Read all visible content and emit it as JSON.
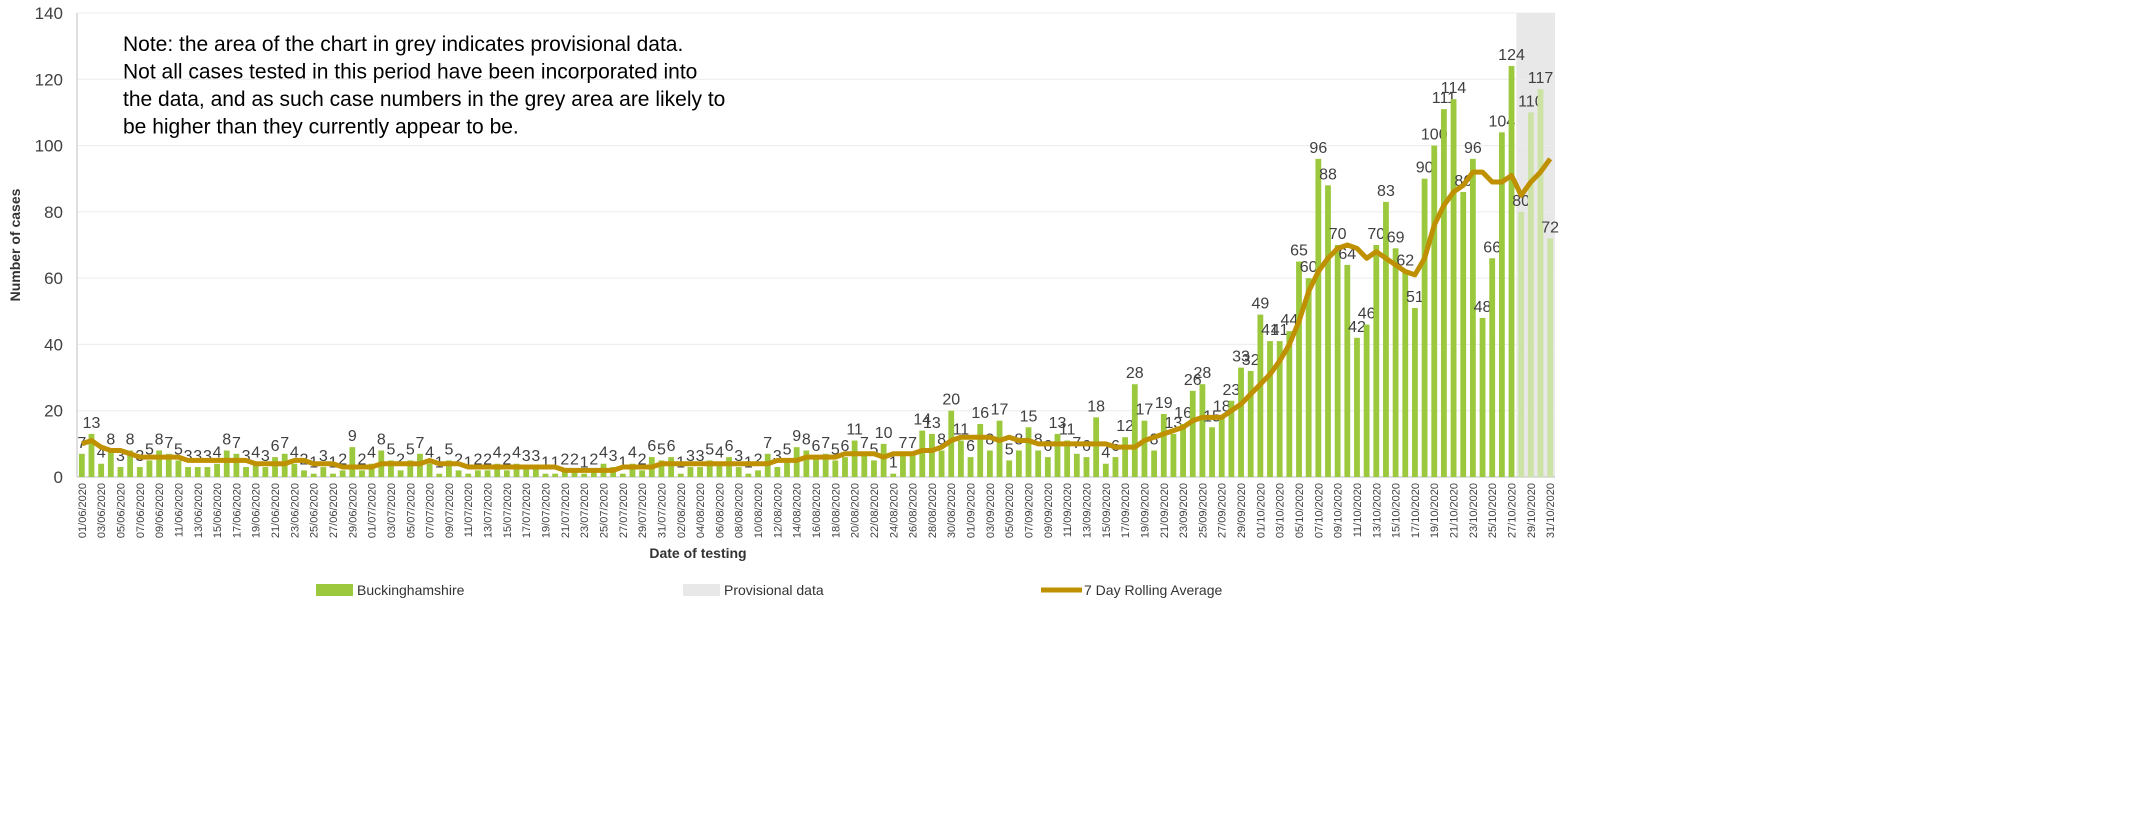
{
  "chart_data": {
    "type": "bar",
    "annotations": [
      "Note: the area of the chart in grey indicates provisional data.",
      "Not all cases tested in this period have been incorporated into",
      "the data, and as such case numbers in the grey area are likely to",
      "be higher than they currently appear to be."
    ],
    "x_label": "Date of testing",
    "y_label": "Number of cases",
    "categories": [
      "01/06/2020",
      null,
      "03/06/2020",
      null,
      "05/06/2020",
      null,
      "07/06/2020",
      null,
      "09/06/2020",
      null,
      "11/06/2020",
      null,
      "13/06/2020",
      null,
      "15/06/2020",
      null,
      "17/06/2020",
      null,
      "19/06/2020",
      null,
      "21/06/2020",
      null,
      "23/06/2020",
      null,
      "25/06/2020",
      null,
      "27/06/2020",
      null,
      "29/06/2020",
      null,
      "01/07/2020",
      null,
      "03/07/2020",
      null,
      "05/07/2020",
      null,
      "07/07/2020",
      null,
      "09/07/2020",
      null,
      "11/07/2020",
      null,
      "13/07/2020",
      null,
      "15/07/2020",
      null,
      "17/07/2020",
      null,
      "19/07/2020",
      null,
      "21/07/2020",
      null,
      "23/07/2020",
      null,
      "25/07/2020",
      null,
      "27/07/2020",
      null,
      "29/07/2020",
      null,
      "31/07/2020",
      null,
      "02/08/2020",
      null,
      "04/08/2020",
      null,
      "06/08/2020",
      null,
      "08/08/2020",
      null,
      "10/08/2020",
      null,
      "12/08/2020",
      null,
      "14/08/2020",
      null,
      "16/08/2020",
      null,
      "18/08/2020",
      null,
      "20/08/2020",
      null,
      "22/08/2020",
      null,
      "24/08/2020",
      null,
      "26/08/2020",
      null,
      "28/08/2020",
      null,
      "30/08/2020",
      null,
      "01/09/2020",
      null,
      "03/09/2020",
      null,
      "05/09/2020",
      null,
      "07/09/2020",
      null,
      "09/09/2020",
      null,
      "11/09/2020",
      null,
      "13/09/2020",
      null,
      "15/09/2020",
      null,
      "17/09/2020",
      null,
      "19/09/2020",
      null,
      "21/09/2020",
      null,
      "23/09/2020",
      null,
      "25/09/2020",
      null,
      "27/09/2020",
      null,
      "29/09/2020",
      null,
      "01/10/2020",
      null,
      "03/10/2020",
      null,
      "05/10/2020",
      null,
      "07/10/2020",
      null,
      "09/10/2020",
      null,
      "11/10/2020",
      null,
      "13/10/2020",
      null,
      "15/10/2020",
      null,
      "17/10/2020",
      null,
      "19/10/2020",
      null,
      "21/10/2020",
      null,
      "23/10/2020",
      null,
      "25/10/2020",
      null,
      "27/10/2020",
      null,
      "29/10/2020",
      null,
      "31/10/2020"
    ],
    "series": [
      {
        "name": "Buckinghamshire",
        "color": "#9bc83c",
        "values": [
          7,
          13,
          4,
          8,
          3,
          8,
          3,
          5,
          8,
          7,
          5,
          3,
          3,
          3,
          4,
          8,
          7,
          3,
          4,
          3,
          6,
          7,
          4,
          2,
          1,
          3,
          1,
          2,
          9,
          2,
          4,
          8,
          5,
          2,
          5,
          7,
          4,
          1,
          5,
          2,
          1,
          2,
          2,
          4,
          2,
          4,
          3,
          3,
          1,
          1,
          2,
          2,
          1,
          2,
          4,
          3,
          1,
          4,
          2,
          6,
          5,
          6,
          1,
          3,
          3,
          5,
          4,
          6,
          3,
          1,
          2,
          7,
          3,
          5,
          9,
          8,
          6,
          7,
          5,
          6,
          11,
          7,
          5,
          10,
          1,
          7,
          7,
          14,
          13,
          8,
          20,
          11,
          6,
          16,
          8,
          17,
          5,
          8,
          15,
          8,
          6,
          13,
          11,
          7,
          6,
          18,
          4,
          6,
          12,
          28,
          17,
          8,
          19,
          13,
          16,
          26,
          28,
          15,
          18,
          23,
          33,
          32,
          49,
          41,
          41,
          44,
          65,
          60,
          96,
          88,
          70,
          64,
          42,
          46,
          70,
          83,
          69,
          62,
          51,
          90,
          100,
          111,
          114,
          86,
          96,
          48,
          66,
          104,
          124,
          80,
          110,
          117,
          72
        ]
      },
      {
        "name": "7 Day Rolling Average",
        "type": "line",
        "color": "#bf9000",
        "values": [
          10,
          11,
          9,
          8,
          8,
          7,
          6,
          6,
          6,
          6,
          6,
          5,
          5,
          5,
          5,
          5,
          5,
          5,
          4,
          4,
          4,
          4,
          5,
          5,
          4,
          4,
          4,
          3,
          3,
          3,
          3,
          4,
          4,
          4,
          4,
          4,
          5,
          4,
          4,
          4,
          3,
          3,
          3,
          3,
          3,
          3,
          3,
          3,
          3,
          3,
          2,
          2,
          2,
          2,
          2,
          2,
          3,
          3,
          3,
          3,
          4,
          4,
          4,
          4,
          4,
          4,
          4,
          4,
          4,
          4,
          4,
          4,
          5,
          5,
          5,
          6,
          6,
          6,
          6,
          7,
          7,
          7,
          7,
          6,
          7,
          7,
          7,
          8,
          8,
          9,
          11,
          12,
          12,
          12,
          12,
          11,
          12,
          11,
          11,
          10,
          10,
          10,
          10,
          10,
          10,
          10,
          10,
          9,
          9,
          9,
          11,
          12,
          13,
          14,
          15,
          17,
          18,
          18,
          18,
          20,
          22,
          25,
          28,
          31,
          35,
          40,
          47,
          56,
          62,
          66,
          69,
          70,
          69,
          66,
          68,
          66,
          64,
          62,
          61,
          66,
          76,
          82,
          86,
          88,
          92,
          92,
          89,
          89,
          91,
          85,
          89,
          92,
          96
        ]
      }
    ],
    "provisional": {
      "name": "Provisional data",
      "color": "#e8e8e8",
      "bar_color": "#cde3a6",
      "from": 149
    },
    "ylim": [
      0,
      140
    ],
    "yticks": [
      0,
      20,
      40,
      60,
      80,
      100,
      120,
      140
    ],
    "grid": true
  }
}
